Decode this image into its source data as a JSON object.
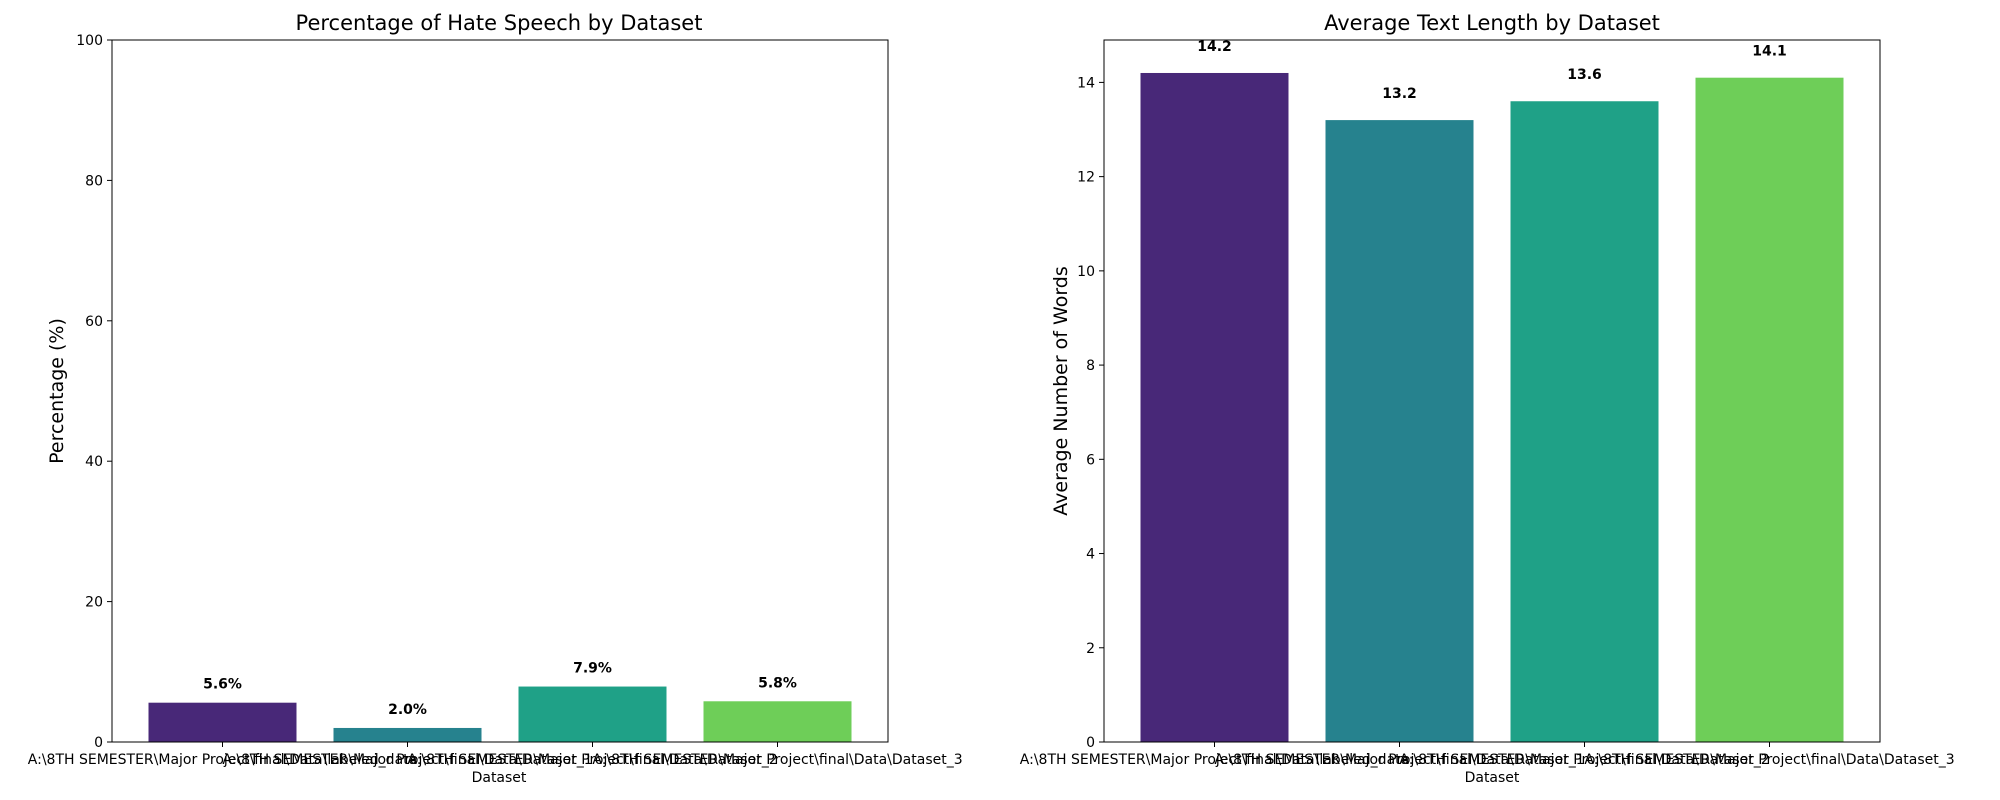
{
  "chart_data": [
    {
      "type": "bar",
      "title": "Percentage of Hate Speech by Dataset",
      "xlabel": "Dataset",
      "ylabel": "Percentage (%)",
      "categories": [
        "A:\\8TH SEMESTER\\Major Project\\final\\Data\\labeled_data",
        "A:\\8TH SEMESTER\\Major Project\\final\\Data\\Dataset_1",
        "A:\\8TH SEMESTER\\Major Project\\final\\Data\\Dataset_2",
        "A:\\8TH SEMESTER\\Major Project\\final\\Data\\Dataset_3"
      ],
      "values": [
        5.6,
        2.0,
        7.9,
        5.8
      ],
      "data_labels": [
        "5.6%",
        "2.0%",
        "7.9%",
        "5.8%"
      ],
      "colors": [
        "#482878",
        "#26828e",
        "#1fa187",
        "#6ece58"
      ],
      "ylim": [
        0,
        100
      ],
      "yticks": [
        0,
        20,
        40,
        60,
        80,
        100
      ],
      "grid": false
    },
    {
      "type": "bar",
      "title": "Average Text Length by Dataset",
      "xlabel": "Dataset",
      "ylabel": "Average Number of Words",
      "categories": [
        "A:\\8TH SEMESTER\\Major Project\\final\\Data\\labeled_data",
        "A:\\8TH SEMESTER\\Major Project\\final\\Data\\Dataset_1",
        "A:\\8TH SEMESTER\\Major Project\\final\\Data\\Dataset_2",
        "A:\\8TH SEMESTER\\Major Project\\final\\Data\\Dataset_3"
      ],
      "values": [
        14.2,
        13.2,
        13.6,
        14.1
      ],
      "data_labels": [
        "14.2",
        "13.2",
        "13.6",
        "14.1"
      ],
      "colors": [
        "#482878",
        "#26828e",
        "#1fa187",
        "#6ece58"
      ],
      "ylim": [
        0,
        14.9
      ],
      "yticks": [
        0,
        2,
        4,
        6,
        8,
        10,
        12,
        14
      ],
      "grid": false
    }
  ]
}
